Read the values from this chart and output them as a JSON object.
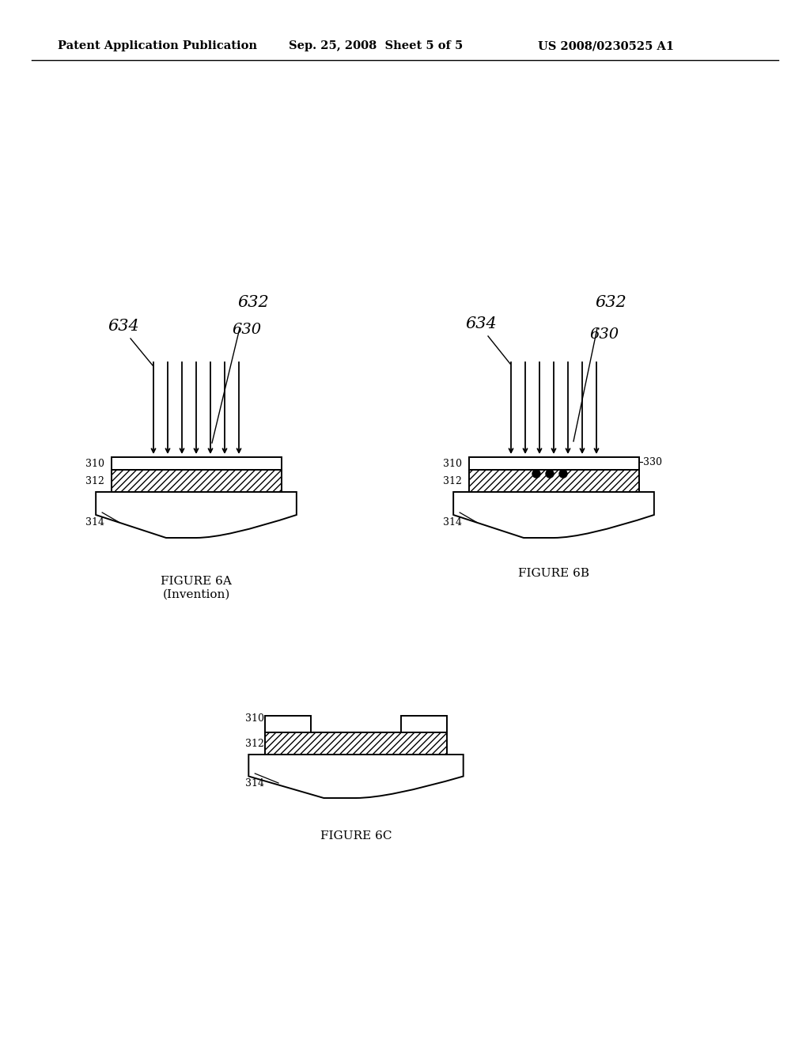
{
  "bg_color": "#ffffff",
  "header_left": "Patent Application Publication",
  "header_center": "Sep. 25, 2008  Sheet 5 of 5",
  "header_right": "US 2008/0230525 A1",
  "fig6a_label": "FIGURE 6A\n(Invention)",
  "fig6b_label": "FIGURE 6B",
  "fig6c_label": "FIGURE 6C",
  "line_color": "#000000"
}
